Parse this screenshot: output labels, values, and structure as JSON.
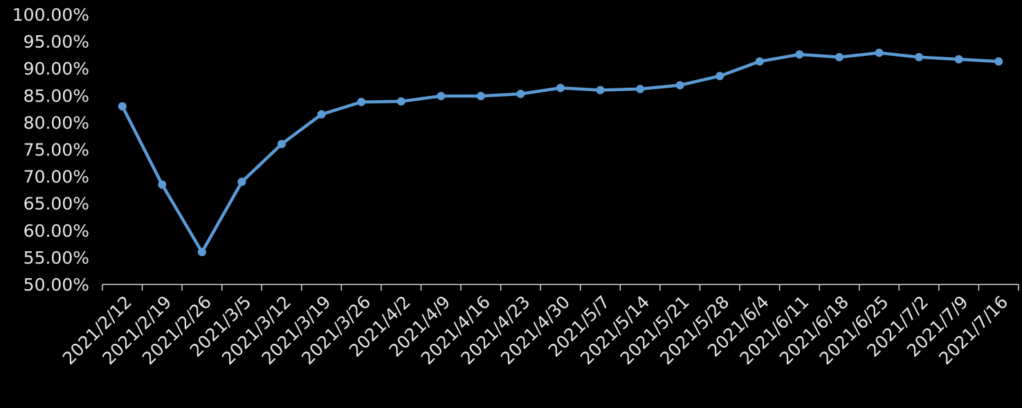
{
  "chart_data": {
    "type": "line",
    "categories": [
      "2021/2/12",
      "2021/2/19",
      "2021/2/26",
      "2021/3/5",
      "2021/3/12",
      "2021/3/19",
      "2021/3/26",
      "2021/4/2",
      "2021/4/9",
      "2021/4/16",
      "2021/4/23",
      "2021/4/30",
      "2021/5/7",
      "2021/5/14",
      "2021/5/21",
      "2021/5/28",
      "2021/6/4",
      "2021/6/11",
      "2021/6/18",
      "2021/6/25",
      "2021/7/2",
      "2021/7/9",
      "2021/7/16"
    ],
    "series": [
      {
        "values": [
          83.0,
          68.5,
          56.0,
          69.0,
          76.0,
          81.5,
          83.8,
          83.9,
          84.9,
          84.9,
          85.3,
          86.4,
          86.0,
          86.2,
          86.9,
          88.6,
          91.3,
          92.6,
          92.1,
          92.9,
          92.1,
          91.7,
          91.3
        ],
        "color": "#5b9bd5"
      }
    ],
    "ylim": [
      50,
      100
    ],
    "y_ticks": [
      "50.00%",
      "55.00%",
      "60.00%",
      "65.00%",
      "70.00%",
      "75.00%",
      "80.00%",
      "85.00%",
      "90.00%",
      "95.00%",
      "100.00%"
    ],
    "title": "",
    "xlabel": "",
    "ylabel": "",
    "grid": false,
    "legend": "none",
    "background": "#000000",
    "text_color": "#e6e6e6",
    "axis_color": "#d9d9d9"
  }
}
